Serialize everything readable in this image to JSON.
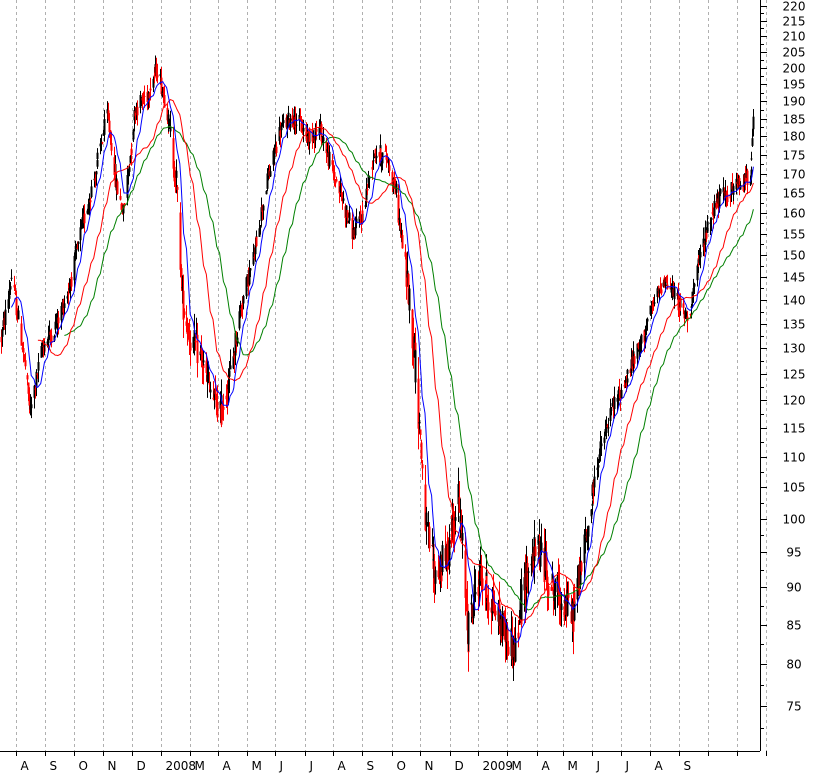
{
  "chart_data": {
    "type": "candlestick",
    "colors": {
      "up": "#000000",
      "down": "#ff0000",
      "ma_fast": "#0000ff",
      "ma_mid": "#ff0000",
      "ma_slow": "#008000",
      "grid": "#b0b0b0",
      "background": "#ffffff"
    },
    "y_axis": {
      "ticks": [
        220,
        215,
        210,
        205,
        200,
        195,
        190,
        185,
        180,
        175,
        170,
        165,
        160,
        155,
        150,
        145,
        140,
        135,
        130,
        125,
        120,
        115,
        110,
        105,
        100,
        95,
        90,
        85,
        80,
        75
      ],
      "scale": "log",
      "ylim": [
        70,
        222
      ]
    },
    "x_axis": {
      "tick_labels": [
        "A",
        "S",
        "O",
        "N",
        "D",
        "2008",
        "M",
        "A",
        "M",
        "J",
        "J",
        "A",
        "S",
        "O",
        "N",
        "D",
        "2009",
        "M",
        "A",
        "M",
        "J",
        "J",
        "A",
        "S"
      ],
      "grid_months": [
        "2007-08",
        "2007-09",
        "2007-10",
        "2007-11",
        "2007-12",
        "2008-01",
        "2008-02",
        "2008-03",
        "2008-04",
        "2008-05",
        "2008-06",
        "2008-07",
        "2008-08",
        "2008-09",
        "2008-10",
        "2008-11",
        "2008-12",
        "2009-01",
        "2009-02",
        "2009-03",
        "2009-04",
        "2009-05",
        "2009-06",
        "2009-07",
        "2009-08",
        "2009-09",
        "2009-10"
      ]
    },
    "price_anchors": [
      [
        "2007-07-16",
        132
      ],
      [
        "2007-07-27",
        145
      ],
      [
        "2007-08-06",
        132
      ],
      [
        "2007-08-16",
        118
      ],
      [
        "2007-08-28",
        130
      ],
      [
        "2007-09-10",
        134
      ],
      [
        "2007-09-25",
        142
      ],
      [
        "2007-10-08",
        155
      ],
      [
        "2007-10-25",
        172
      ],
      [
        "2007-11-05",
        186
      ],
      [
        "2007-11-14",
        168
      ],
      [
        "2007-11-22",
        160
      ],
      [
        "2007-12-05",
        188
      ],
      [
        "2007-12-17",
        192
      ],
      [
        "2007-12-28",
        200
      ],
      [
        "2008-01-08",
        186
      ],
      [
        "2008-01-17",
        168
      ],
      [
        "2008-01-23",
        140
      ],
      [
        "2008-02-01",
        132
      ],
      [
        "2008-02-12",
        128
      ],
      [
        "2008-02-25",
        120
      ],
      [
        "2008-03-05",
        118
      ],
      [
        "2008-03-14",
        125
      ],
      [
        "2008-03-25",
        138
      ],
      [
        "2008-04-08",
        150
      ],
      [
        "2008-04-22",
        168
      ],
      [
        "2008-05-06",
        182
      ],
      [
        "2008-05-20",
        186
      ],
      [
        "2008-06-03",
        180
      ],
      [
        "2008-06-17",
        182
      ],
      [
        "2008-07-01",
        170
      ],
      [
        "2008-07-11",
        163
      ],
      [
        "2008-07-22",
        155
      ],
      [
        "2008-08-01",
        160
      ],
      [
        "2008-08-13",
        176
      ],
      [
        "2008-08-27",
        174
      ],
      [
        "2008-09-05",
        165
      ],
      [
        "2008-09-16",
        146
      ],
      [
        "2008-09-26",
        126
      ],
      [
        "2008-10-07",
        98
      ],
      [
        "2008-10-16",
        92
      ],
      [
        "2008-10-28",
        94
      ],
      [
        "2008-11-10",
        103
      ],
      [
        "2008-11-20",
        84
      ],
      [
        "2008-12-02",
        92
      ],
      [
        "2008-12-15",
        88
      ],
      [
        "2008-12-29",
        84
      ],
      [
        "2009-01-09",
        82
      ],
      [
        "2009-01-21",
        92
      ],
      [
        "2009-02-03",
        96
      ],
      [
        "2009-02-17",
        90
      ],
      [
        "2009-03-02",
        88
      ],
      [
        "2009-03-10",
        86
      ],
      [
        "2009-03-24",
        96
      ],
      [
        "2009-04-07",
        110
      ],
      [
        "2009-04-21",
        118
      ],
      [
        "2009-05-06",
        124
      ],
      [
        "2009-05-20",
        130
      ],
      [
        "2009-06-03",
        138
      ],
      [
        "2009-06-15",
        145
      ],
      [
        "2009-06-29",
        140
      ],
      [
        "2009-07-10",
        136
      ],
      [
        "2009-07-24",
        150
      ],
      [
        "2009-08-07",
        162
      ],
      [
        "2009-08-21",
        165
      ],
      [
        "2009-09-04",
        167
      ],
      [
        "2009-09-14",
        170
      ],
      [
        "2009-09-18",
        183
      ]
    ],
    "moving_averages": {
      "fast_period": 10,
      "mid_period": 30,
      "slow_period": 50
    }
  }
}
